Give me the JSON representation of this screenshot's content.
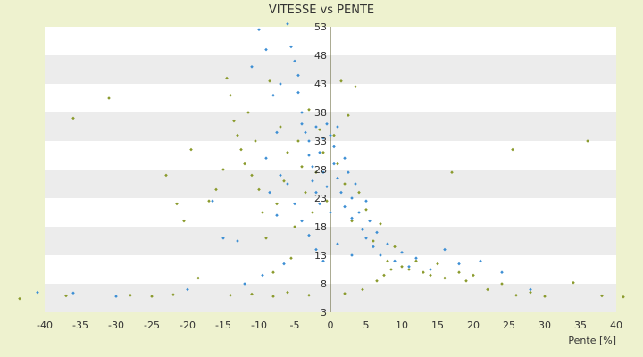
{
  "chart_data": {
    "type": "scatter",
    "title": "VITESSE vs PENTE",
    "xlabel": "Pente [%]",
    "ylabel": "",
    "xlim": [
      -40,
      40
    ],
    "ylim": [
      3,
      53
    ],
    "x_ticks": [
      -40,
      -35,
      -30,
      -25,
      -20,
      -15,
      -10,
      -5,
      0,
      5,
      10,
      15,
      20,
      25,
      30,
      35,
      40
    ],
    "y_ticks": [
      53,
      48,
      43,
      38,
      33,
      28,
      23,
      18,
      13,
      8,
      3
    ],
    "y_tick_labels": [
      "53",
      "48",
      "43",
      "38",
      "33",
      "28",
      "23",
      "18",
      "13",
      "8",
      "3"
    ],
    "grid": "horizontal bands",
    "series": [
      {
        "marker": "green diamond",
        "color": "#8a9a2c",
        "points": [
          [
            -43.5,
            5.4
          ],
          [
            -37.0,
            5.9
          ],
          [
            -36.0,
            37.0
          ],
          [
            -31.0,
            40.5
          ],
          [
            -23.0,
            27.0
          ],
          [
            -21.5,
            22.0
          ],
          [
            -20.5,
            19.0
          ],
          [
            -19.5,
            31.5
          ],
          [
            -18.5,
            9.0
          ],
          [
            -17.0,
            22.5
          ],
          [
            -16.0,
            24.5
          ],
          [
            -15.0,
            28.0
          ],
          [
            -14.5,
            44.0
          ],
          [
            -14.0,
            41.0
          ],
          [
            -13.5,
            36.5
          ],
          [
            -13.0,
            34.0
          ],
          [
            -12.5,
            31.5
          ],
          [
            -12.0,
            29.0
          ],
          [
            -11.5,
            38.0
          ],
          [
            -11.0,
            27.0
          ],
          [
            -10.5,
            33.0
          ],
          [
            -10.0,
            24.5
          ],
          [
            -9.5,
            20.5
          ],
          [
            -9.0,
            16.0
          ],
          [
            -8.5,
            43.5
          ],
          [
            -8.0,
            10.0
          ],
          [
            -7.5,
            22.0
          ],
          [
            -7.0,
            35.5
          ],
          [
            -6.5,
            26.0
          ],
          [
            -6.0,
            31.0
          ],
          [
            -5.5,
            12.5
          ],
          [
            -5.0,
            18.0
          ],
          [
            -4.5,
            33.0
          ],
          [
            -4.0,
            28.5
          ],
          [
            -3.5,
            24.0
          ],
          [
            -3.0,
            38.5
          ],
          [
            -2.5,
            20.5
          ],
          [
            -2.0,
            27.5
          ],
          [
            -1.5,
            35.0
          ],
          [
            -1.0,
            31.0
          ],
          [
            -0.5,
            22.5
          ],
          [
            0.5,
            34.0
          ],
          [
            1.0,
            29.0
          ],
          [
            1.5,
            43.5
          ],
          [
            2.0,
            25.5
          ],
          [
            2.5,
            37.5
          ],
          [
            3.0,
            19.0
          ],
          [
            3.5,
            42.5
          ],
          [
            4.0,
            24.0
          ],
          [
            5.0,
            21.0
          ],
          [
            6.0,
            15.5
          ],
          [
            7.0,
            18.5
          ],
          [
            8.0,
            12.0
          ],
          [
            9.0,
            14.5
          ],
          [
            10.0,
            11.0
          ],
          [
            11.0,
            10.5
          ],
          [
            12.0,
            12.0
          ],
          [
            13.0,
            10.0
          ],
          [
            14.0,
            9.5
          ],
          [
            15.0,
            11.5
          ],
          [
            16.0,
            9.0
          ],
          [
            17.0,
            27.5
          ],
          [
            18.0,
            10.0
          ],
          [
            19.0,
            8.5
          ],
          [
            20.0,
            9.5
          ],
          [
            22.0,
            7.0
          ],
          [
            24.0,
            8.0
          ],
          [
            25.5,
            31.5
          ],
          [
            26.0,
            6.0
          ],
          [
            28.0,
            6.5
          ],
          [
            30.0,
            5.8
          ],
          [
            34.0,
            8.2
          ],
          [
            36.0,
            33.0
          ],
          [
            38.0,
            5.9
          ],
          [
            41.0,
            5.7
          ],
          [
            -28.0,
            6.0
          ],
          [
            -25.0,
            5.8
          ],
          [
            -22.0,
            6.1
          ],
          [
            -14.0,
            6.0
          ],
          [
            -11.0,
            6.2
          ],
          [
            -8.0,
            5.8
          ],
          [
            -6.0,
            6.5
          ],
          [
            -3.0,
            6.0
          ],
          [
            2.0,
            6.3
          ],
          [
            4.5,
            7.0
          ],
          [
            6.5,
            8.5
          ],
          [
            7.5,
            9.5
          ],
          [
            8.5,
            10.5
          ]
        ]
      },
      {
        "marker": "blue diamond",
        "color": "#3d8fd4",
        "points": [
          [
            -41.0,
            6.5
          ],
          [
            -36.0,
            6.4
          ],
          [
            -30.0,
            5.8
          ],
          [
            -20.0,
            7.0
          ],
          [
            -16.5,
            22.5
          ],
          [
            -15.0,
            16.0
          ],
          [
            -13.0,
            15.5
          ],
          [
            -10.0,
            52.5
          ],
          [
            -8.0,
            41.0
          ],
          [
            -7.5,
            34.5
          ],
          [
            -7.0,
            43.0
          ],
          [
            -6.0,
            53.5
          ],
          [
            -5.5,
            49.5
          ],
          [
            -5.0,
            47.0
          ],
          [
            -4.5,
            44.5
          ],
          [
            -4.5,
            41.5
          ],
          [
            -4.0,
            38.0
          ],
          [
            -4.0,
            36.0
          ],
          [
            -3.5,
            34.5
          ],
          [
            -3.0,
            33.0
          ],
          [
            -3.0,
            30.5
          ],
          [
            -2.5,
            28.5
          ],
          [
            -2.5,
            26.0
          ],
          [
            -2.0,
            35.5
          ],
          [
            -2.0,
            24.0
          ],
          [
            -1.5,
            31.0
          ],
          [
            -1.5,
            22.0
          ],
          [
            -1.0,
            33.5
          ],
          [
            -1.0,
            27.5
          ],
          [
            -0.5,
            36.0
          ],
          [
            -0.5,
            25.0
          ],
          [
            0.0,
            34.0
          ],
          [
            0.0,
            20.5
          ],
          [
            0.5,
            32.0
          ],
          [
            0.5,
            29.0
          ],
          [
            1.0,
            35.5
          ],
          [
            1.0,
            26.5
          ],
          [
            1.5,
            24.0
          ],
          [
            2.0,
            30.0
          ],
          [
            2.0,
            21.5
          ],
          [
            2.5,
            27.5
          ],
          [
            3.0,
            23.0
          ],
          [
            3.0,
            19.5
          ],
          [
            3.5,
            25.5
          ],
          [
            4.0,
            20.5
          ],
          [
            4.5,
            17.5
          ],
          [
            5.0,
            22.5
          ],
          [
            5.0,
            16.0
          ],
          [
            5.5,
            19.0
          ],
          [
            6.0,
            14.5
          ],
          [
            6.5,
            17.0
          ],
          [
            7.0,
            13.0
          ],
          [
            8.0,
            15.0
          ],
          [
            9.0,
            12.0
          ],
          [
            10.0,
            13.5
          ],
          [
            11.0,
            11.0
          ],
          [
            12.0,
            12.5
          ],
          [
            14.0,
            10.5
          ],
          [
            16.0,
            14.0
          ],
          [
            18.0,
            11.5
          ],
          [
            21.0,
            12.0
          ],
          [
            24.0,
            10.0
          ],
          [
            28.0,
            7.0
          ],
          [
            -9.0,
            30.0
          ],
          [
            -7.0,
            27.0
          ],
          [
            -6.0,
            25.5
          ],
          [
            -5.0,
            22.0
          ],
          [
            -4.0,
            19.0
          ],
          [
            -3.0,
            16.5
          ],
          [
            -2.0,
            14.0
          ],
          [
            -1.0,
            12.0
          ],
          [
            1.0,
            15.0
          ],
          [
            3.0,
            13.0
          ],
          [
            -12.0,
            8.0
          ],
          [
            -9.5,
            9.5
          ],
          [
            -6.5,
            11.5
          ],
          [
            -11.0,
            46.0
          ],
          [
            -9.0,
            49.0
          ],
          [
            -8.5,
            24.0
          ],
          [
            -7.5,
            20.0
          ]
        ]
      }
    ]
  }
}
